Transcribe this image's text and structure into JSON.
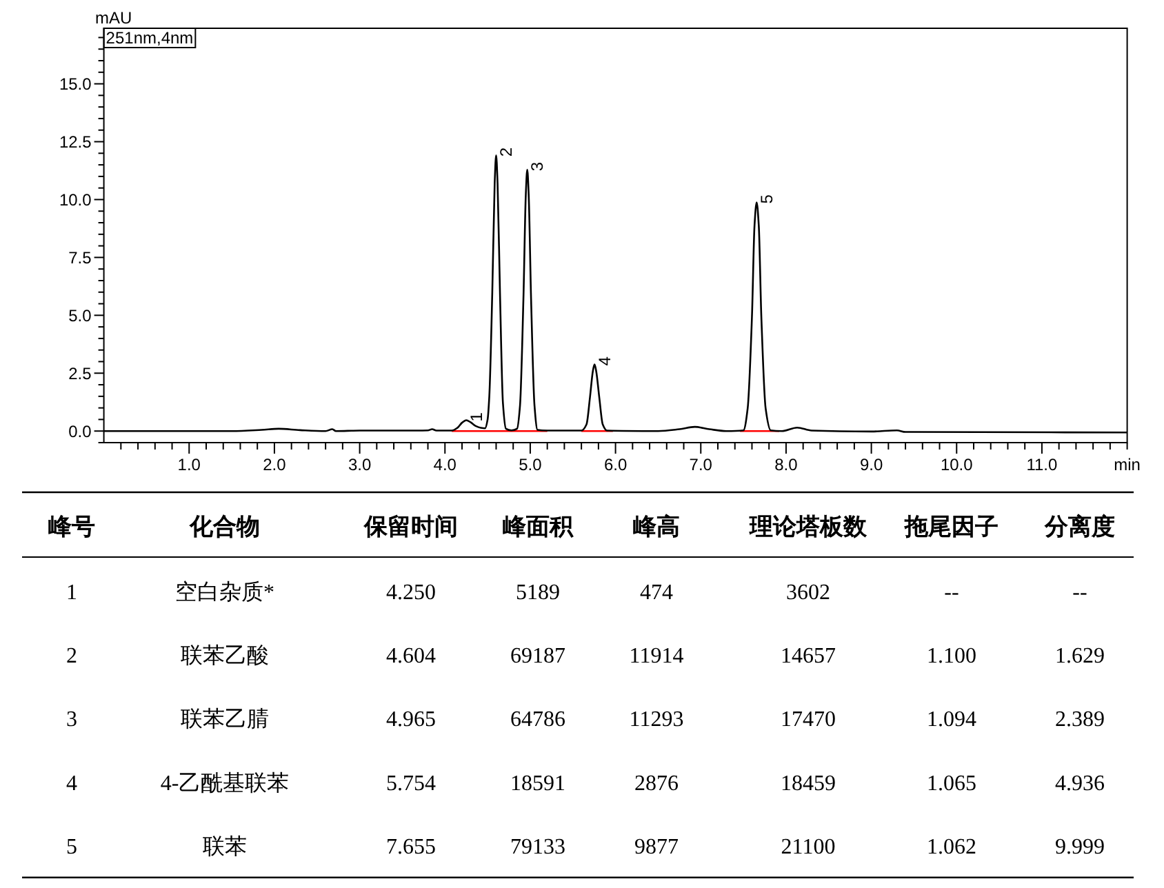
{
  "chart_data": {
    "type": "line",
    "xlabel": "min",
    "ylabel": "mAU",
    "xlim": [
      0,
      12
    ],
    "ylim": [
      -0.5,
      17.4
    ],
    "xticks": [
      {
        "value": 0.2,
        "label": null
      },
      {
        "value": 0.4,
        "label": null
      },
      {
        "value": 0.6,
        "label": null
      },
      {
        "value": 0.8,
        "label": null
      },
      {
        "value": 1,
        "label": "1.0"
      },
      {
        "value": 1.2,
        "label": null
      },
      {
        "value": 1.4,
        "label": null
      },
      {
        "value": 1.6,
        "label": null
      },
      {
        "value": 1.8,
        "label": null
      },
      {
        "value": 2,
        "label": "2.0"
      },
      {
        "value": 2.2,
        "label": null
      },
      {
        "value": 2.4,
        "label": null
      },
      {
        "value": 2.6,
        "label": null
      },
      {
        "value": 2.8,
        "label": null
      },
      {
        "value": 3,
        "label": "3.0"
      },
      {
        "value": 3.2,
        "label": null
      },
      {
        "value": 3.4,
        "label": null
      },
      {
        "value": 3.6,
        "label": null
      },
      {
        "value": 3.8,
        "label": null
      },
      {
        "value": 4,
        "label": "4.0"
      },
      {
        "value": 4.2,
        "label": null
      },
      {
        "value": 4.4,
        "label": null
      },
      {
        "value": 4.6,
        "label": null
      },
      {
        "value": 4.8,
        "label": null
      },
      {
        "value": 5,
        "label": "5.0"
      },
      {
        "value": 5.2,
        "label": null
      },
      {
        "value": 5.4,
        "label": null
      },
      {
        "value": 5.6,
        "label": null
      },
      {
        "value": 5.8,
        "label": null
      },
      {
        "value": 6,
        "label": "6.0"
      },
      {
        "value": 6.2,
        "label": null
      },
      {
        "value": 6.4,
        "label": null
      },
      {
        "value": 6.6,
        "label": null
      },
      {
        "value": 6.8,
        "label": null
      },
      {
        "value": 7,
        "label": "7.0"
      },
      {
        "value": 7.2,
        "label": null
      },
      {
        "value": 7.4,
        "label": null
      },
      {
        "value": 7.6,
        "label": null
      },
      {
        "value": 7.8,
        "label": null
      },
      {
        "value": 8,
        "label": "8.0"
      },
      {
        "value": 8.2,
        "label": null
      },
      {
        "value": 8.4,
        "label": null
      },
      {
        "value": 8.6,
        "label": null
      },
      {
        "value": 8.8,
        "label": null
      },
      {
        "value": 9,
        "label": "9.0"
      },
      {
        "value": 9.2,
        "label": null
      },
      {
        "value": 9.4,
        "label": null
      },
      {
        "value": 9.6,
        "label": null
      },
      {
        "value": 9.8,
        "label": null
      },
      {
        "value": 10,
        "label": "10.0"
      },
      {
        "value": 10.2,
        "label": null
      },
      {
        "value": 10.4,
        "label": null
      },
      {
        "value": 10.6,
        "label": null
      },
      {
        "value": 10.8,
        "label": null
      },
      {
        "value": 11,
        "label": "11.0"
      },
      {
        "value": 11.2,
        "label": null
      },
      {
        "value": 11.4,
        "label": null
      },
      {
        "value": 11.6,
        "label": null
      },
      {
        "value": 11.8,
        "label": null
      },
      {
        "value": 12,
        "label": null
      }
    ],
    "yticks": [
      {
        "value": -0.5,
        "label": null
      },
      {
        "value": 0,
        "label": "0.0"
      },
      {
        "value": 0.5,
        "label": null
      },
      {
        "value": 1,
        "label": null
      },
      {
        "value": 1.5,
        "label": null
      },
      {
        "value": 2,
        "label": null
      },
      2.5,
      {
        "value": 3,
        "label": null
      },
      {
        "value": 3.5,
        "label": null
      },
      {
        "value": 4,
        "label": null
      },
      {
        "value": 4.5,
        "label": null
      },
      {
        "value": 5,
        "label": "5.0"
      },
      {
        "value": 5.5,
        "label": null
      },
      {
        "value": 6,
        "label": null
      },
      {
        "value": 6.5,
        "label": null
      },
      {
        "value": 7,
        "label": null
      },
      7.5,
      {
        "value": 8,
        "label": null
      },
      {
        "value": 8.5,
        "label": null
      },
      {
        "value": 9,
        "label": null
      },
      {
        "value": 9.5,
        "label": null
      },
      {
        "value": 10,
        "label": "10.0"
      },
      {
        "value": 10.5,
        "label": null
      },
      {
        "value": 11,
        "label": null
      },
      {
        "value": 11.5,
        "label": null
      },
      {
        "value": 12,
        "label": null
      },
      12.5,
      {
        "value": 13,
        "label": null
      },
      {
        "value": 13.5,
        "label": null
      },
      {
        "value": 14,
        "label": null
      },
      {
        "value": 14.5,
        "label": null
      },
      {
        "value": 15,
        "label": "15.0"
      },
      {
        "value": 15.5,
        "label": null
      },
      {
        "value": 16,
        "label": null
      },
      {
        "value": 16.5,
        "label": null
      },
      {
        "value": 17,
        "label": null
      }
    ],
    "series": [
      {
        "color": "#ff0000",
        "x": [
          4.08,
          5.2
        ],
        "values": [
          0,
          0
        ]
      },
      {
        "color": "#ff0000",
        "x": [
          5.6,
          5.97
        ],
        "values": [
          0,
          0
        ]
      },
      {
        "color": "#ff0000",
        "x": [
          7.46,
          7.92
        ],
        "values": [
          0,
          0
        ]
      },
      {
        "color": "#000000",
        "x": [
          0,
          1.5,
          1.85,
          2.05,
          2.3,
          2.6,
          2.68,
          2.72,
          3.0,
          3.5,
          3.8,
          3.85,
          3.9,
          4.08,
          4.15,
          4.2,
          4.25,
          4.3,
          4.36,
          4.42,
          4.47,
          4.5,
          4.52,
          4.555,
          4.583,
          4.6,
          4.617,
          4.645,
          4.68,
          4.715,
          4.78,
          4.845,
          4.88,
          4.92,
          4.948,
          4.965,
          4.982,
          5.01,
          5.05,
          5.085,
          5.2,
          5.6,
          5.66,
          5.7,
          5.735,
          5.754,
          5.773,
          5.81,
          5.85,
          5.9,
          6.5,
          6.75,
          6.93,
          7.1,
          7.3,
          7.5,
          7.55,
          7.6,
          7.63,
          7.655,
          7.68,
          7.71,
          7.76,
          7.82,
          7.95,
          8.13,
          8.3,
          9.0,
          9.3,
          9.4,
          12.0
        ],
        "values": [
          0,
          0,
          0.05,
          0.1,
          0.04,
          0,
          0.08,
          0,
          0.02,
          0.02,
          0.03,
          0.08,
          0.02,
          0.02,
          0.15,
          0.36,
          0.47,
          0.38,
          0.22,
          0.14,
          0.12,
          0.5,
          1.5,
          6.0,
          10.7,
          11.91,
          10.7,
          6.0,
          1.2,
          0.1,
          0.03,
          0.1,
          1.1,
          5.7,
          10.2,
          11.29,
          10.2,
          5.7,
          1.1,
          0.05,
          0.02,
          0.02,
          0.29,
          1.44,
          2.6,
          2.88,
          2.6,
          1.44,
          0.29,
          0.02,
          0,
          0.08,
          0.18,
          0.08,
          0,
          0.03,
          0.99,
          4.94,
          8.88,
          9.88,
          8.88,
          4.94,
          0.99,
          0.03,
          0,
          0.15,
          0.02,
          -0.02,
          0.03,
          -0.04,
          -0.06
        ]
      }
    ],
    "annotations": [
      "251nm,4nm",
      {
        "text": "1",
        "x": 4.25,
        "y": 0.47
      },
      {
        "text": "2",
        "x": 4.6,
        "y": 11.91
      },
      {
        "text": "3",
        "x": 4.965,
        "y": 11.29
      },
      {
        "text": "4",
        "x": 5.754,
        "y": 2.88
      },
      {
        "text": "5",
        "x": 7.655,
        "y": 9.88
      },
      "峰号",
      "化合物",
      "保留时间",
      "峰面积",
      "峰高",
      "理论塔板数",
      "拖尾因子",
      "分离度",
      "1",
      "空白杂质*",
      "4.250",
      "5189",
      "474",
      "3602",
      "--",
      "--",
      "2",
      "联苯乙酸",
      "4.604",
      "69187",
      "11914",
      "14657",
      "1.100",
      "1.629",
      "3",
      "联苯乙腈",
      "4.965",
      "64786",
      "11293",
      "17470",
      "1.094",
      "2.389",
      "4",
      "4-乙酰基联苯",
      "5.754",
      "18591",
      "2876",
      "18459",
      "1.065",
      "4.936",
      "5",
      "联苯",
      "7.655",
      "79133",
      "9877",
      "21100",
      "1.062",
      "9.999"
    ]
  }
}
